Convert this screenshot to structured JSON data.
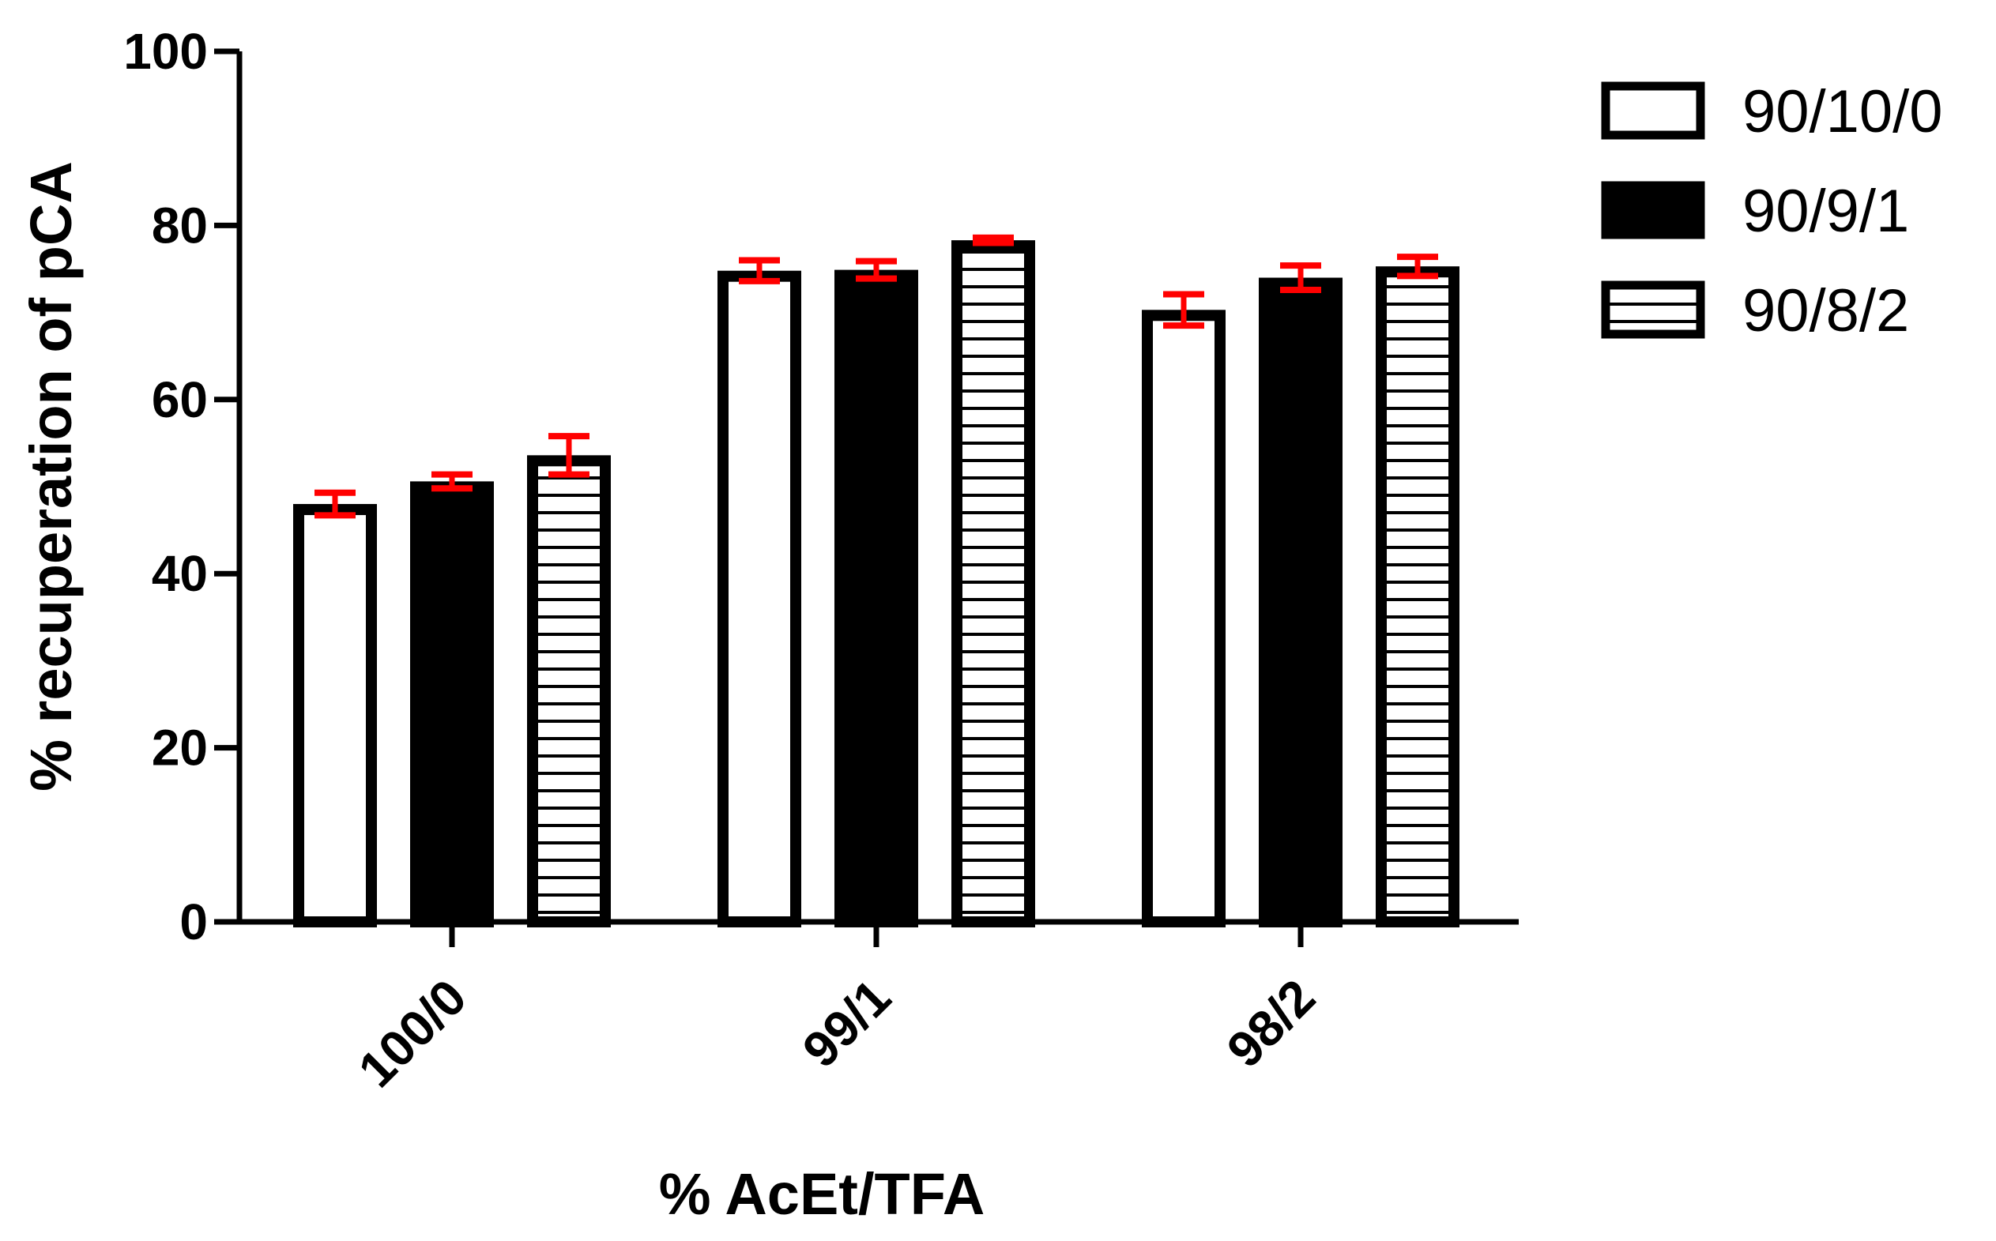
{
  "chart_data": {
    "type": "bar",
    "title": "",
    "xlabel": "% AcEt/TFA",
    "ylabel": "% recuperation of pCA",
    "ylim": [
      0,
      100
    ],
    "yticks": [
      0,
      20,
      40,
      60,
      80,
      100
    ],
    "ytick_labels": [
      "0",
      "20",
      "40",
      "60",
      "80",
      "100"
    ],
    "categories": [
      "100/0",
      "99/1",
      "98/2"
    ],
    "grid": false,
    "legend_position": "top-right",
    "error_bar_color": "#ff0000",
    "series": [
      {
        "name": "90/10/0",
        "fill": "white",
        "values": [
          48,
          74.8,
          70.3
        ],
        "errors": [
          1.3,
          1.2,
          1.8
        ]
      },
      {
        "name": "90/9/1",
        "fill": "black",
        "values": [
          50.6,
          74.9,
          74
        ],
        "errors": [
          0.8,
          1.0,
          1.4
        ]
      },
      {
        "name": "90/8/2",
        "fill": "horizontal-stripes",
        "values": [
          53.6,
          78.3,
          75.3
        ],
        "errors": [
          2.2,
          0.3,
          1.1
        ]
      }
    ]
  }
}
